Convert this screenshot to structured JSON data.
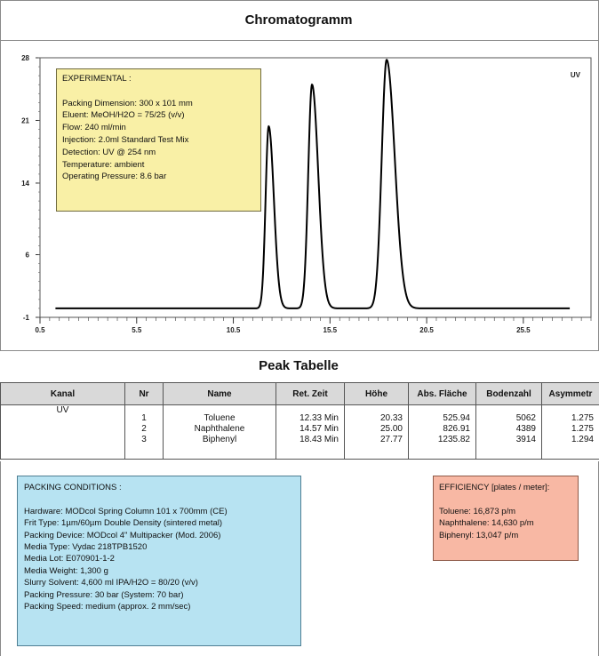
{
  "title": "Chromatogramm",
  "chart_data": {
    "type": "line",
    "title": "Chromatogramm",
    "xlabel": "",
    "ylabel": "",
    "xlim": [
      0.5,
      29.0
    ],
    "ylim": [
      -1,
      28
    ],
    "x_ticks": [
      "0.5",
      "5.5",
      "10.5",
      "15.5",
      "20.5",
      "25.5"
    ],
    "x_tick_values": [
      0.5,
      5.5,
      10.5,
      15.5,
      20.5,
      25.5
    ],
    "y_ticks": [
      "28",
      "21",
      "14",
      "6",
      "-1"
    ],
    "y_tick_values": [
      28,
      21,
      14,
      6,
      -1
    ],
    "series": [
      {
        "name": "UV",
        "baseline": 0,
        "peaks": [
          {
            "x": 12.33,
            "height": 20.33,
            "width": 0.19
          },
          {
            "x": 14.57,
            "height": 25.0,
            "width": 0.23
          },
          {
            "x": 18.43,
            "height": 27.77,
            "width": 0.3
          }
        ]
      }
    ],
    "series_label": "UV",
    "line_color": "#000000"
  },
  "experimental": {
    "lines": [
      "EXPERIMENTAL :",
      "",
      "Packing Dimension: 300 x 101 mm",
      "Eluent: MeOH/H2O = 75/25 (v/v)",
      "Flow: 240 ml/min",
      "Injection: 2.0ml Standard Test Mix",
      "Detection: UV @ 254 nm",
      "Temperature: ambient",
      "Operating Pressure: 8.6 bar"
    ]
  },
  "peak_table": {
    "title": "Peak Tabelle",
    "headers": [
      "Kanal",
      "Nr",
      "Name",
      "Ret. Zeit",
      "Höhe",
      "Abs. Fläche",
      "Bodenzahl",
      "Asymmetr"
    ],
    "kanal": "UV",
    "rows": [
      {
        "nr": "1",
        "name": "Toluene",
        "ret": "12.33 Min",
        "hoehe": "20.33",
        "flaeche": "525.94",
        "boden": "5062",
        "asym": "1.275"
      },
      {
        "nr": "2",
        "name": "Naphthalene",
        "ret": "14.57 Min",
        "hoehe": "25.00",
        "flaeche": "826.91",
        "boden": "4389",
        "asym": "1.275"
      },
      {
        "nr": "3",
        "name": "Biphenyl",
        "ret": "18.43 Min",
        "hoehe": "27.77",
        "flaeche": "1235.82",
        "boden": "3914",
        "asym": "1.294"
      }
    ]
  },
  "packing": {
    "lines": [
      "PACKING  CONDITIONS :",
      "",
      "Hardware: MODcol Spring Column 101 x 700mm (CE)",
      "Frit Type: 1µm/60µm Double Density (sintered metal)",
      "Packing Device: MODcol 4\" Multipacker (Mod. 2006)",
      "Media Type: Vydac 218TPB1520",
      "Media Lot: E070901-1-2",
      "Media Weight: 1,300 g",
      "Slurry Solvent: 4,600 ml IPA/H2O = 80/20 (v/v)",
      "Packing Pressure: 30 bar (System: 70 bar)",
      "Packing Speed: medium (approx. 2 mm/sec)"
    ]
  },
  "efficiency": {
    "lines": [
      "EFFICIENCY [plates / meter]:",
      "",
      "Toluene: 16,873 p/m",
      "Naphthalene: 14,630 p/m",
      "Biphenyl: 13,047 p/m"
    ]
  }
}
